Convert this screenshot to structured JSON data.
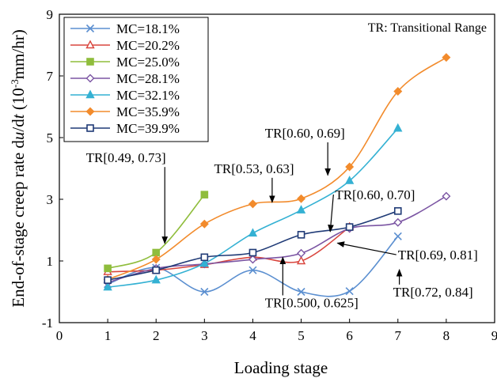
{
  "chart_data": {
    "type": "line",
    "xlabel": "Loading stage",
    "ylabel_parts": [
      "End-of-stage creep rate d",
      "u",
      "/d",
      "t",
      "  (10",
      "-3",
      "mm/hr)"
    ],
    "xlim": [
      0,
      9
    ],
    "ylim": [
      -1,
      9
    ],
    "xticks": [
      0,
      1,
      2,
      3,
      4,
      5,
      6,
      7,
      8,
      9
    ],
    "yticks": [
      -1,
      1,
      3,
      5,
      7,
      9
    ],
    "grid": false,
    "legend_position": "top-left",
    "note": "TR: Transitional Range",
    "series": [
      {
        "name": "MC=18.1%",
        "color": "#5b8fd0",
        "marker": "x",
        "x": [
          1,
          2,
          3,
          4,
          5,
          6,
          7
        ],
        "y": [
          0.25,
          0.78,
          0.0,
          0.7,
          0.0,
          0.02,
          1.8
        ]
      },
      {
        "name": "MC=20.2%",
        "color": "#d9463e",
        "marker": "triangle-open",
        "x": [
          1,
          2,
          3,
          4,
          5,
          6
        ],
        "y": [
          0.65,
          0.7,
          0.88,
          1.12,
          1.0,
          2.1
        ]
      },
      {
        "name": "MC=25.0%",
        "color": "#8fbd3c",
        "marker": "square",
        "x": [
          1,
          2,
          3
        ],
        "y": [
          0.76,
          1.27,
          3.15
        ]
      },
      {
        "name": "MC=28.1%",
        "color": "#7b55a3",
        "marker": "diamond-open",
        "x": [
          1,
          2,
          3,
          4,
          5,
          6,
          7,
          8
        ],
        "y": [
          0.3,
          0.76,
          0.9,
          1.05,
          1.25,
          2.05,
          2.25,
          3.1
        ]
      },
      {
        "name": "MC=32.1%",
        "color": "#34b1d3",
        "marker": "triangle",
        "x": [
          1,
          2,
          3,
          4,
          5,
          6,
          7
        ],
        "y": [
          0.15,
          0.38,
          0.92,
          1.9,
          2.65,
          3.6,
          5.3
        ]
      },
      {
        "name": "MC=35.9%",
        "color": "#f28b2c",
        "marker": "diamond",
        "x": [
          1,
          2,
          3,
          4,
          5,
          6,
          7,
          8
        ],
        "y": [
          0.4,
          1.05,
          2.2,
          2.85,
          3.02,
          4.05,
          6.5,
          7.6
        ]
      },
      {
        "name": "MC=39.9%",
        "color": "#1f3a76",
        "marker": "square-open",
        "x": [
          1,
          2,
          3,
          4,
          5,
          6,
          7
        ],
        "y": [
          0.38,
          0.7,
          1.12,
          1.27,
          1.85,
          2.1,
          2.62
        ]
      }
    ],
    "annotations": [
      {
        "text": "TR[0.49, 0.73]",
        "pos": [
          0.55,
          4.2
        ],
        "arrow_to": [
          2.18,
          1.57
        ]
      },
      {
        "text": "TR[0.53, 0.63]",
        "pos": [
          3.2,
          3.85
        ],
        "arrow_to": [
          4.4,
          2.9
        ]
      },
      {
        "text": "TR[0.60, 0.69]",
        "pos": [
          4.25,
          5.0
        ],
        "arrow_to": [
          5.55,
          3.78
        ]
      },
      {
        "text": "TR[0.60, 0.70]",
        "pos": [
          5.7,
          3.0
        ],
        "arrow_to": [
          5.6,
          1.95
        ]
      },
      {
        "text": "TR[0.69, 0.81]",
        "pos": [
          7.0,
          1.05
        ],
        "arrow_to": [
          5.75,
          1.58
        ]
      },
      {
        "text": "TR[0.500, 0.625]",
        "pos": [
          4.25,
          -0.5
        ],
        "arrow_to": [
          4.62,
          1.12
        ]
      },
      {
        "text": "TR[0.72, 0.84]",
        "pos": [
          6.9,
          -0.15
        ],
        "arrow_to": [
          7.03,
          0.72
        ]
      }
    ]
  }
}
